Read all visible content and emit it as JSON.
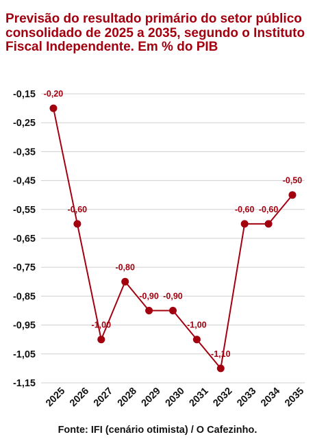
{
  "colors": {
    "accent": "#a3000f",
    "grid": "#cfcfcf",
    "text": "#111111"
  },
  "source": "Fonte: IFI (cenário otimista) / O Cafezinho.",
  "chart_data": {
    "type": "line",
    "title": "Previsão do resultado primário do setor público consolidado de 2025 a 2035, segundo o Instituto Fiscal Independente. Em % do PIB",
    "xlabel": "",
    "ylabel": "",
    "categories": [
      "2025",
      "2026",
      "2027",
      "2028",
      "2029",
      "2030",
      "2031",
      "2032",
      "2033",
      "2034",
      "2035"
    ],
    "series": [
      {
        "values": [
          -0.2,
          -0.6,
          -1.0,
          -0.8,
          -0.9,
          -0.9,
          -1.0,
          -1.1,
          -0.6,
          -0.6,
          -0.5
        ],
        "labels": [
          "-0,20",
          "-0,60",
          "-1,00",
          "-0,80",
          "-0,90",
          "-0,90",
          "-1,00",
          "-1,10",
          "-0,60",
          "-0,60",
          "-0,50"
        ]
      }
    ],
    "yticks": [
      -0.15,
      -0.25,
      -0.35,
      -0.45,
      -0.55,
      -0.65,
      -0.75,
      -0.85,
      -0.95,
      -1.05,
      -1.15
    ],
    "ytick_labels": [
      "-0,15",
      "-0,25",
      "-0,35",
      "-0,45",
      "-0,55",
      "-0,65",
      "-0,75",
      "-0,85",
      "-0,95",
      "-1,05",
      "-1,15"
    ],
    "ylim": [
      -1.15,
      -0.15
    ],
    "grid": true,
    "legend": "none"
  }
}
